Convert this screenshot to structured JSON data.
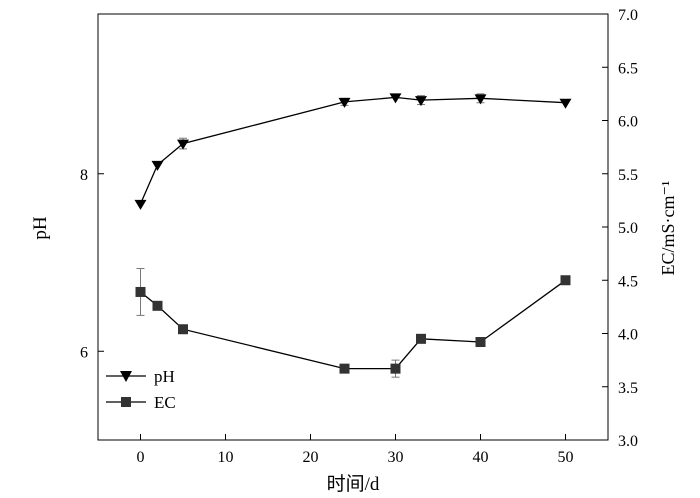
{
  "chart_data": {
    "type": "line",
    "title": "",
    "xlabel": "时间/d",
    "ylabel_left": "pH",
    "ylabel_right": "EC/mS·cm⁻¹",
    "xlim": [
      -5,
      55
    ],
    "ylim_left": [
      5.0,
      9.8
    ],
    "ylim_right": [
      3.0,
      7.0
    ],
    "x_ticks": [
      0,
      10,
      20,
      30,
      40,
      50
    ],
    "y_left_ticks": [
      6,
      8
    ],
    "y_right_ticks": [
      "3.0",
      "3.5",
      "4.0",
      "4.5",
      "5.0",
      "5.5",
      "6.0",
      "6.5",
      "7.0"
    ],
    "grid": false,
    "legend_position": "bottom-left",
    "series": [
      {
        "name": "pH",
        "axis": "left",
        "marker": "triangle-down",
        "x": [
          0,
          2,
          5,
          24,
          30,
          33,
          40,
          50
        ],
        "y": [
          7.66,
          8.1,
          8.34,
          8.81,
          8.86,
          8.83,
          8.85,
          8.8
        ],
        "err": [
          0,
          0,
          0.06,
          0.04,
          0,
          0.05,
          0.05,
          0
        ]
      },
      {
        "name": "EC",
        "axis": "right",
        "marker": "square",
        "x": [
          0,
          2,
          5,
          24,
          30,
          33,
          40,
          50
        ],
        "y": [
          4.39,
          4.26,
          4.04,
          3.67,
          3.67,
          3.95,
          3.92,
          4.5
        ],
        "err": [
          0.22,
          0,
          0,
          0,
          0.08,
          0.03,
          0,
          0.04
        ]
      }
    ]
  }
}
